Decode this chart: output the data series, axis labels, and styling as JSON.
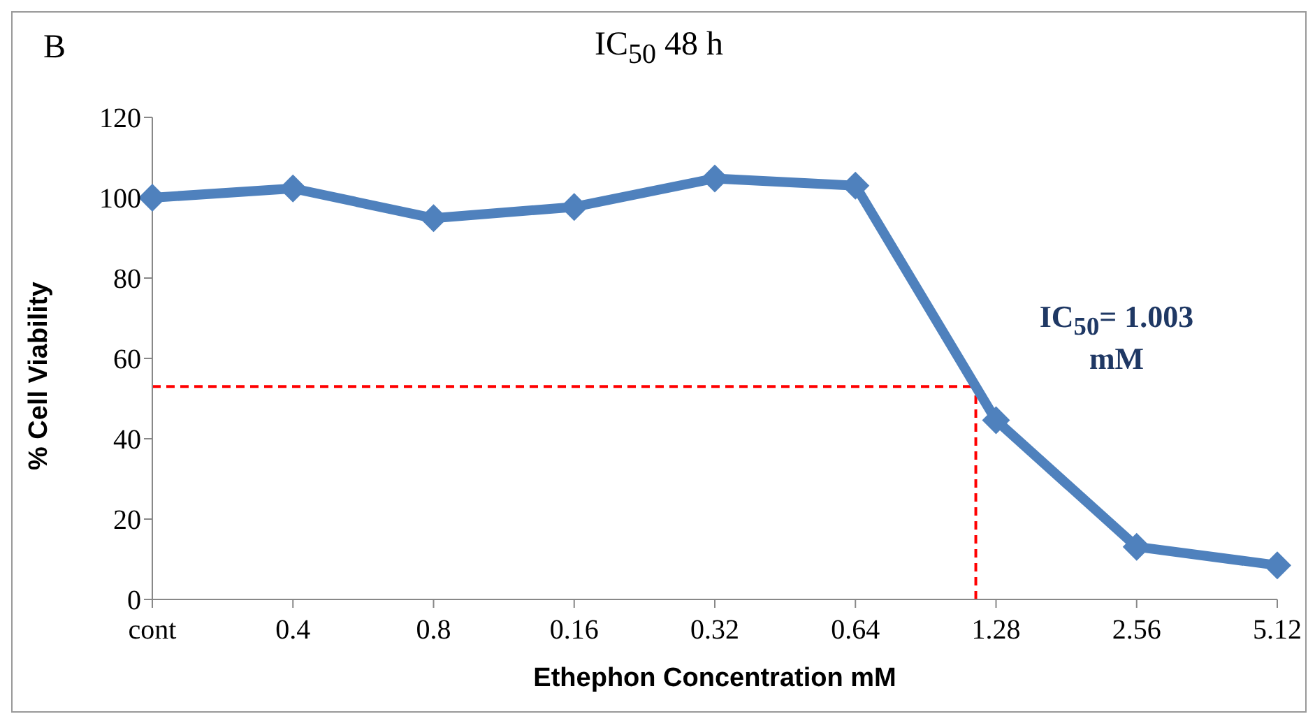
{
  "chart_data": {
    "type": "line",
    "title": "IC$_{50}$ 48 h",
    "xlabel": "Ethephon Concentration mM",
    "ylabel": "% Cell Viability",
    "categories": [
      "cont",
      "0.4",
      "0.8",
      "0.16",
      "0.32",
      "0.64",
      "1.28",
      "2.56",
      "5.12"
    ],
    "series": [
      {
        "color": "#4f81bd",
        "values": [
          100,
          102.3,
          94.9,
          97.7,
          104.8,
          103,
          44.6,
          13.1,
          8.5
        ]
      }
    ],
    "ylim": [
      0,
      120
    ],
    "yticks": [
      0,
      20,
      40,
      60,
      80,
      100,
      120
    ],
    "grid": false,
    "legend": false,
    "marker": "diamond",
    "line_style": "solid",
    "ref_lines": [
      {
        "axis": "y",
        "value": 53,
        "color": "#ff0000",
        "line_style": "dashed"
      }
    ],
    "annotations": [
      "B",
      "IC$_{50}$= 1.003 mM"
    ]
  }
}
